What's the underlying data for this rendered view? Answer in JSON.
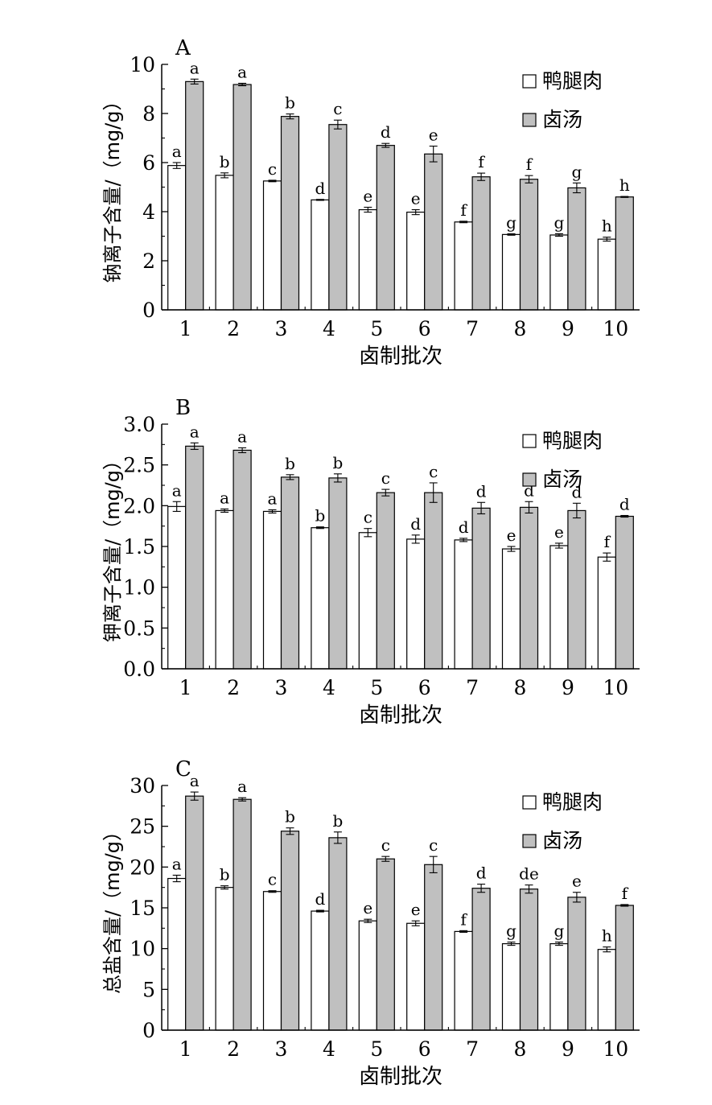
{
  "colors": {
    "meat": "#ffffff",
    "brine": "#c0c0c0",
    "stroke": "#000000"
  },
  "chart_data": [
    {
      "panel": "A",
      "type": "bar",
      "ylabel": "钠离子含量/（mg/g）",
      "xlabel": "卤制批次",
      "categories": [
        "1",
        "2",
        "3",
        "4",
        "5",
        "6",
        "7",
        "8",
        "9",
        "10"
      ],
      "ylim": [
        0,
        10
      ],
      "yticks": [
        "0",
        "2",
        "4",
        "6",
        "8",
        "10"
      ],
      "legend": [
        "鸭腿肉",
        "卤汤"
      ],
      "legend_position": "top-right",
      "series": [
        {
          "name": "鸭腿肉",
          "values": [
            5.88,
            5.48,
            5.25,
            4.48,
            4.08,
            3.98,
            3.58,
            3.07,
            3.05,
            2.88
          ],
          "errors": [
            0.12,
            0.1,
            0.03,
            0.02,
            0.1,
            0.1,
            0.03,
            0.03,
            0.05,
            0.08
          ],
          "letters": [
            "a",
            "b",
            "c",
            "d",
            "e",
            "e",
            "f",
            "g",
            "g",
            "h"
          ]
        },
        {
          "name": "卤汤",
          "values": [
            9.3,
            9.18,
            7.88,
            7.55,
            6.7,
            6.35,
            5.42,
            5.32,
            4.97,
            4.6
          ],
          "errors": [
            0.1,
            0.05,
            0.1,
            0.18,
            0.08,
            0.32,
            0.15,
            0.15,
            0.2,
            0.02
          ],
          "letters": [
            "a",
            "a",
            "b",
            "c",
            "d",
            "e",
            "f",
            "f",
            "g",
            "h"
          ]
        }
      ]
    },
    {
      "panel": "B",
      "type": "bar",
      "ylabel": "钾离子含量/（mg/g）",
      "xlabel": "卤制批次",
      "categories": [
        "1",
        "2",
        "3",
        "4",
        "5",
        "6",
        "7",
        "8",
        "9",
        "10"
      ],
      "ylim": [
        0,
        3
      ],
      "yticks": [
        "0.0",
        "0.5",
        "1.0",
        "1.5",
        "2.0",
        "2.5",
        "3.0"
      ],
      "legend": [
        "鸭腿肉",
        "卤汤"
      ],
      "legend_position": "top-right",
      "series": [
        {
          "name": "鸭腿肉",
          "values": [
            1.99,
            1.94,
            1.93,
            1.73,
            1.67,
            1.59,
            1.58,
            1.47,
            1.51,
            1.37
          ],
          "errors": [
            0.06,
            0.02,
            0.02,
            0.01,
            0.05,
            0.05,
            0.02,
            0.03,
            0.03,
            0.05
          ],
          "letters": [
            "a",
            "a",
            "a",
            "b",
            "c",
            "d",
            "d",
            "e",
            "e",
            "f"
          ]
        },
        {
          "name": "卤汤",
          "values": [
            2.73,
            2.68,
            2.35,
            2.34,
            2.16,
            2.16,
            1.97,
            1.98,
            1.94,
            1.87
          ],
          "errors": [
            0.04,
            0.03,
            0.03,
            0.05,
            0.04,
            0.12,
            0.07,
            0.07,
            0.09,
            0.01
          ],
          "letters": [
            "a",
            "a",
            "b",
            "b",
            "c",
            "c",
            "d",
            "d",
            "d",
            "d"
          ]
        }
      ]
    },
    {
      "panel": "C",
      "type": "bar",
      "ylabel": "总盐含量/（mg/g）",
      "xlabel": "卤制批次",
      "categories": [
        "1",
        "2",
        "3",
        "4",
        "5",
        "6",
        "7",
        "8",
        "9",
        "10"
      ],
      "ylim": [
        0,
        30
      ],
      "yticks": [
        "0",
        "5",
        "10",
        "15",
        "20",
        "25",
        "30"
      ],
      "legend": [
        "鸭腿肉",
        "卤汤"
      ],
      "legend_position": "top-right",
      "series": [
        {
          "name": "鸭腿肉",
          "values": [
            18.6,
            17.5,
            17.0,
            14.6,
            13.4,
            13.1,
            12.1,
            10.6,
            10.6,
            9.9
          ],
          "errors": [
            0.4,
            0.2,
            0.1,
            0.1,
            0.2,
            0.3,
            0.1,
            0.2,
            0.2,
            0.3
          ],
          "letters": [
            "a",
            "b",
            "c",
            "d",
            "e",
            "e",
            "f",
            "g",
            "g",
            "h"
          ]
        },
        {
          "name": "卤汤",
          "values": [
            28.7,
            28.3,
            24.4,
            23.6,
            21.0,
            20.3,
            17.4,
            17.3,
            16.3,
            15.3
          ],
          "errors": [
            0.5,
            0.2,
            0.4,
            0.7,
            0.3,
            1.0,
            0.5,
            0.5,
            0.6,
            0.1
          ],
          "letters": [
            "a",
            "a",
            "b",
            "b",
            "c",
            "c",
            "d",
            "de",
            "e",
            "f"
          ]
        }
      ]
    }
  ]
}
